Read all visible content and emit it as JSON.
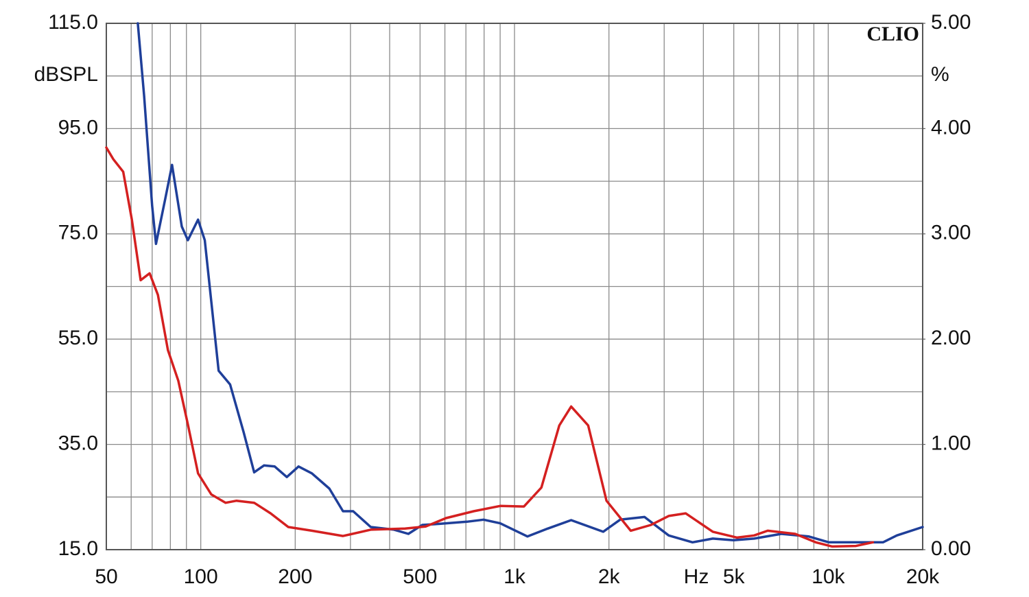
{
  "chart_data": {
    "type": "line",
    "watermark": "CLIO",
    "ylabel": "dBSPL",
    "y2label": "%",
    "xlabel": "Hz",
    "xlog": true,
    "grid": true,
    "xlim": [
      50,
      20000
    ],
    "xticks": [
      50,
      100,
      200,
      500,
      {
        "value": 1000,
        "label": "1k"
      },
      {
        "value": 2000,
        "label": "2k"
      },
      {
        "value": 5000,
        "label": "5k"
      },
      {
        "value": 10000,
        "label": "10k"
      },
      {
        "value": 20000,
        "label": "20k"
      }
    ],
    "xgrid": [
      60,
      70,
      80,
      90,
      300,
      400,
      600,
      700,
      800,
      900,
      3000,
      4000,
      6000,
      7000,
      8000,
      9000
    ],
    "ylim": [
      15,
      115
    ],
    "yticks": [
      {
        "value": 15,
        "label": "15.0"
      },
      {
        "value": 35,
        "label": "35.0"
      },
      {
        "value": 55,
        "label": "55.0"
      },
      {
        "value": 75,
        "label": "75.0"
      },
      {
        "value": 95,
        "label": "95.0"
      },
      {
        "value": 115,
        "label": "115.0"
      }
    ],
    "ygrid": [
      25,
      45,
      65,
      85,
      105
    ],
    "y2lim": [
      0,
      5
    ],
    "y2ticks": [
      {
        "value": 0,
        "label": "0.00"
      },
      {
        "value": 1,
        "label": "1.00"
      },
      {
        "value": 2,
        "label": "2.00"
      },
      {
        "value": 3,
        "label": "3.00"
      },
      {
        "value": 4,
        "label": "4.00"
      },
      {
        "value": 5,
        "label": "5.00"
      }
    ],
    "series": [
      {
        "color": "#1f3f99",
        "x": [
          63,
          66,
          70,
          72,
          77,
          81,
          87,
          91,
          98,
          103,
          114,
          124,
          137,
          148,
          159,
          172,
          188,
          205,
          226,
          257,
          284,
          306,
          348,
          413,
          459,
          508,
          577,
          705,
          797,
          900,
          1100,
          1276,
          1516,
          1917,
          2171,
          2596,
          3101,
          3693,
          4287,
          4994,
          5806,
          7088,
          8670,
          10046,
          12255,
          14950,
          16540,
          20000
        ],
        "values": [
          115,
          101.2,
          80.3,
          73.1,
          81.6,
          88.1,
          76.4,
          73.8,
          77.7,
          73.8,
          49.0,
          46.4,
          37.3,
          29.7,
          31.0,
          30.8,
          28.8,
          30.8,
          29.5,
          26.6,
          22.3,
          22.3,
          19.3,
          18.8,
          18.0,
          19.7,
          19.9,
          20.3,
          20.7,
          20.0,
          17.5,
          19.0,
          20.6,
          18.4,
          20.7,
          21.2,
          17.7,
          16.4,
          17.1,
          16.8,
          17.1,
          18.0,
          17.5,
          16.4,
          16.4,
          16.4,
          17.7,
          19.3
        ]
      },
      {
        "color": "#d42020",
        "x": [
          50,
          52.6,
          56.6,
          60.3,
          64.3,
          68.7,
          73,
          78.6,
          84.8,
          91.1,
          98,
          108,
          120,
          130,
          148,
          167,
          190,
          226,
          284,
          348,
          448,
          521,
          605,
          741,
          900,
          1072,
          1218,
          1389,
          1516,
          1717,
          1964,
          2347,
          2722,
          3101,
          3512,
          4287,
          5120,
          5806,
          6414,
          7843,
          9121,
          10299,
          12255,
          13877
        ],
        "values": [
          91.4,
          89.2,
          86.8,
          77.7,
          66.2,
          67.5,
          63.4,
          52.9,
          47.1,
          38.6,
          29.5,
          25.5,
          23.9,
          24.3,
          23.9,
          21.9,
          19.3,
          18.6,
          17.6,
          18.8,
          19.0,
          19.4,
          21.0,
          22.3,
          23.3,
          23.2,
          26.8,
          38.6,
          42.2,
          38.6,
          24.3,
          18.6,
          19.7,
          21.4,
          21.9,
          18.4,
          17.3,
          17.7,
          18.6,
          18.0,
          16.4,
          15.6,
          15.7,
          16.4
        ]
      }
    ]
  }
}
